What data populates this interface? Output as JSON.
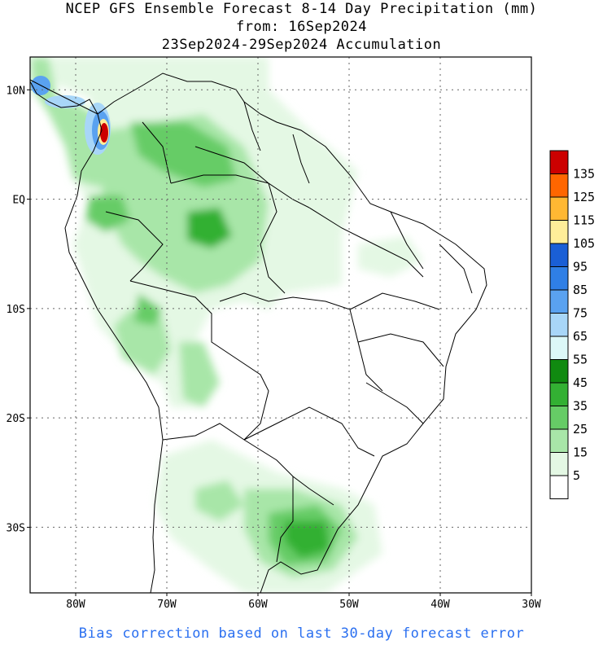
{
  "title": {
    "line1": "NCEP GFS Ensemble Forecast 8-14 Day Precipitation (mm)",
    "line2": "from: 16Sep2024",
    "line3": "23Sep2024-29Sep2024 Accumulation"
  },
  "map": {
    "lat_labels": [
      "10N",
      "EQ",
      "10S",
      "20S",
      "30S"
    ],
    "lon_labels": [
      "80W",
      "70W",
      "60W",
      "50W",
      "40W",
      "30W"
    ],
    "extent": {
      "lon": [
        -85,
        -30
      ],
      "lat": [
        -36,
        13
      ]
    }
  },
  "colorbar": {
    "labels": [
      "135",
      "125",
      "115",
      "105",
      "95",
      "85",
      "75",
      "65",
      "55",
      "45",
      "35",
      "25",
      "15",
      "5"
    ],
    "colors": [
      "#cc0000",
      "#ff6600",
      "#ffb833",
      "#ffee99",
      "#1a5fd6",
      "#2f7fe6",
      "#5aa2f0",
      "#a8d6f8",
      "#dcf8f8",
      "#108a10",
      "#33b033",
      "#66cc66",
      "#a8e6a8",
      "#e4f8e4",
      "#ffffff"
    ]
  },
  "footer": "Bias correction based on last 30-day forecast error"
}
